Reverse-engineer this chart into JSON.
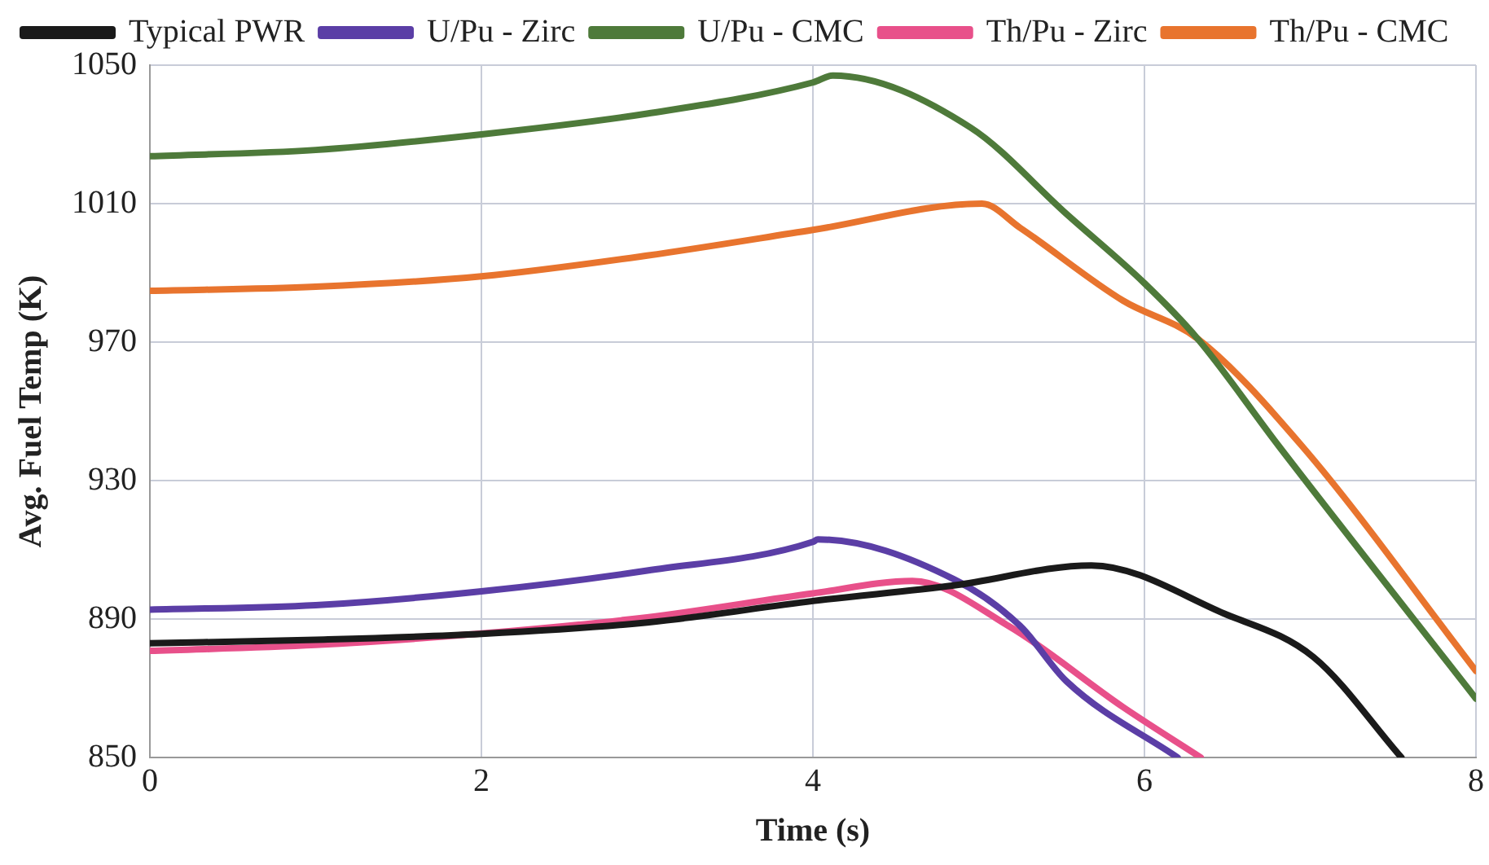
{
  "chart_data": {
    "type": "line",
    "xlabel": "Time (s)",
    "ylabel": "Avg. Fuel Temp (K)",
    "xlim": [
      0,
      8
    ],
    "xticks": [
      0,
      2,
      4,
      6,
      8
    ],
    "ylim": [
      850,
      1050
    ],
    "yticks": [
      850,
      890,
      930,
      970,
      1010,
      1050
    ],
    "grid": true,
    "legend": "top",
    "marker": "none",
    "line_style": "solid",
    "series": [
      {
        "name": "Typical PWR",
        "color": "#1a1a1a",
        "x": [
          0,
          1,
          2,
          3,
          4,
          4.85,
          5.68,
          6.48,
          7.02,
          7.55
        ],
        "values": [
          883,
          884,
          885.7,
          889,
          895.2,
          899.7,
          905.5,
          891.6,
          879,
          850
        ]
      },
      {
        "name": "U/Pu - Zirc",
        "color": "#5b3ea6",
        "x": [
          0,
          1,
          2,
          3,
          4,
          4.03,
          4.85,
          5.25,
          5.53,
          6.2
        ],
        "values": [
          892.7,
          894,
          898,
          904,
          912.3,
          913,
          901.5,
          888,
          872,
          850
        ]
      },
      {
        "name": "U/Pu - CMC",
        "color": "#4e7a3a",
        "x": [
          0,
          1,
          2,
          3,
          4,
          4.12,
          4.95,
          5.53,
          6,
          6.32,
          6.81,
          8
        ],
        "values": [
          1023.7,
          1025.5,
          1030,
          1036,
          1045,
          1047,
          1032,
          1007,
          987,
          971,
          940,
          867
        ]
      },
      {
        "name": "Th/Pu - Zirc",
        "color": "#e8508a",
        "x": [
          0,
          1,
          2,
          3,
          4,
          4.6,
          5.18,
          5.87,
          6.34
        ],
        "values": [
          880.8,
          882.5,
          885.8,
          890.5,
          897.4,
          901,
          888,
          864.6,
          850
        ]
      },
      {
        "name": "Th/Pu - CMC",
        "color": "#e8742e",
        "x": [
          0,
          1,
          2,
          3,
          4,
          5.02,
          5.25,
          5.87,
          6.32,
          6.95,
          8
        ],
        "values": [
          984.8,
          986,
          989,
          995,
          1002.4,
          1010,
          1003,
          982,
          971,
          940,
          875
        ]
      }
    ]
  }
}
